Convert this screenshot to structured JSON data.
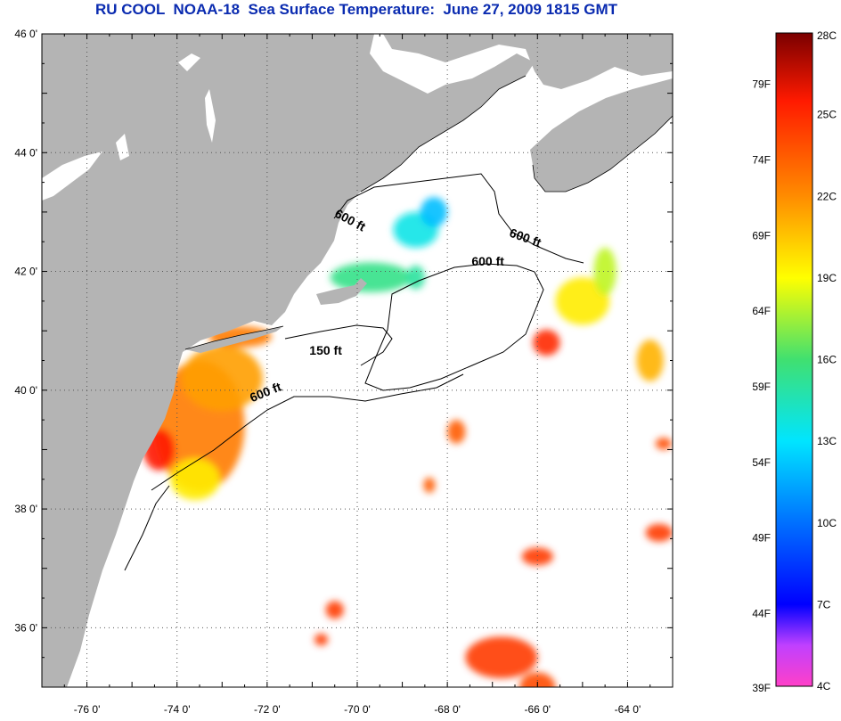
{
  "title": "RU COOL  NOAA-18  Sea Surface Temperature:  June 27, 2009 1815 GMT",
  "map": {
    "lon_range": [
      -77,
      -63
    ],
    "lat_range": [
      35,
      46
    ],
    "lon_ticks": [
      {
        "value": -76,
        "label": "-76 0'"
      },
      {
        "value": -74,
        "label": "-74 0'"
      },
      {
        "value": -72,
        "label": "-72 0'"
      },
      {
        "value": -70,
        "label": "-70 0'"
      },
      {
        "value": -68,
        "label": "-68 0'"
      },
      {
        "value": -66,
        "label": "-66 0'"
      },
      {
        "value": -64,
        "label": "-64 0'"
      }
    ],
    "lat_ticks": [
      {
        "value": 46,
        "label": "46 0'"
      },
      {
        "value": 44,
        "label": "44 0'"
      },
      {
        "value": 42,
        "label": "42 0'"
      },
      {
        "value": 40,
        "label": "40 0'"
      },
      {
        "value": 38,
        "label": "38 0'"
      },
      {
        "value": 36,
        "label": "36 0'"
      }
    ],
    "land_color": "#b4b4b4",
    "gridlines": "dotted",
    "contour_labels": [
      {
        "text": "600 ft",
        "lon": -70.2,
        "lat": 42.8,
        "rotate": 28
      },
      {
        "text": "600 ft",
        "lon": -66.3,
        "lat": 42.5,
        "rotate": 20
      },
      {
        "text": "600 ft",
        "lon": -67.1,
        "lat": 42.1,
        "rotate": 0
      },
      {
        "text": "150 ft",
        "lon": -70.7,
        "lat": 40.6,
        "rotate": 0
      },
      {
        "text": "600 ft",
        "lon": -72.0,
        "lat": 39.9,
        "rotate": -22
      }
    ]
  },
  "colorbar": {
    "celsius": [
      {
        "value": 28,
        "label": "28C"
      },
      {
        "value": 25,
        "label": "25C"
      },
      {
        "value": 22,
        "label": "22C"
      },
      {
        "value": 19,
        "label": "19C"
      },
      {
        "value": 16,
        "label": "16C"
      },
      {
        "value": 13,
        "label": "13C"
      },
      {
        "value": 10,
        "label": "10C"
      },
      {
        "value": 7,
        "label": "7C"
      },
      {
        "value": 4,
        "label": "4C"
      }
    ],
    "fahrenheit": [
      {
        "value": 79,
        "label": "79F"
      },
      {
        "value": 74,
        "label": "74F"
      },
      {
        "value": 69,
        "label": "69F"
      },
      {
        "value": 64,
        "label": "64F"
      },
      {
        "value": 59,
        "label": "59F"
      },
      {
        "value": 54,
        "label": "54F"
      },
      {
        "value": 49,
        "label": "49F"
      },
      {
        "value": 44,
        "label": "44F"
      },
      {
        "value": 39,
        "label": "39F"
      }
    ],
    "range_c": [
      4,
      28
    ],
    "stops": [
      {
        "c": 28,
        "color": "#7a0000"
      },
      {
        "c": 25.5,
        "color": "#ff1a00"
      },
      {
        "c": 22,
        "color": "#ff8c00"
      },
      {
        "c": 19,
        "color": "#ffff00"
      },
      {
        "c": 16,
        "color": "#40e070"
      },
      {
        "c": 13,
        "color": "#00e5ff"
      },
      {
        "c": 10,
        "color": "#0070ff"
      },
      {
        "c": 7,
        "color": "#0000ff"
      },
      {
        "c": 5.5,
        "color": "#c040ff"
      },
      {
        "c": 4,
        "color": "#ff40c8"
      }
    ]
  },
  "sst_patches": [
    {
      "lon": -73.5,
      "lat": 39.4,
      "rx": 1.0,
      "ry": 1.1,
      "c": 22.5
    },
    {
      "lon": -74.4,
      "lat": 39.0,
      "rx": 0.35,
      "ry": 0.35,
      "c": 25.5
    },
    {
      "lon": -73.0,
      "lat": 40.2,
      "rx": 0.9,
      "ry": 0.55,
      "c": 21.5
    },
    {
      "lon": -73.6,
      "lat": 38.5,
      "rx": 0.55,
      "ry": 0.35,
      "c": 19.5
    },
    {
      "lon": -72.6,
      "lat": 40.9,
      "rx": 0.7,
      "ry": 0.18,
      "c": 22.5
    },
    {
      "lon": -69.7,
      "lat": 41.9,
      "rx": 0.9,
      "ry": 0.25,
      "c": 15.5
    },
    {
      "lon": -68.7,
      "lat": 42.7,
      "rx": 0.5,
      "ry": 0.3,
      "c": 13.5
    },
    {
      "lon": -68.3,
      "lat": 43.0,
      "rx": 0.3,
      "ry": 0.25,
      "c": 12.0
    },
    {
      "lon": -68.7,
      "lat": 41.9,
      "rx": 0.2,
      "ry": 0.2,
      "c": 15.0
    },
    {
      "lon": -65.0,
      "lat": 41.5,
      "rx": 0.6,
      "ry": 0.4,
      "c": 19.5
    },
    {
      "lon": -64.5,
      "lat": 42.0,
      "rx": 0.25,
      "ry": 0.4,
      "c": 18.0
    },
    {
      "lon": -65.8,
      "lat": 40.8,
      "rx": 0.3,
      "ry": 0.22,
      "c": 25.0
    },
    {
      "lon": -63.5,
      "lat": 40.5,
      "rx": 0.3,
      "ry": 0.35,
      "c": 21.0
    },
    {
      "lon": -67.8,
      "lat": 39.3,
      "rx": 0.2,
      "ry": 0.2,
      "c": 23.5
    },
    {
      "lon": -68.4,
      "lat": 38.4,
      "rx": 0.13,
      "ry": 0.13,
      "c": 23.5
    },
    {
      "lon": -66.0,
      "lat": 37.2,
      "rx": 0.35,
      "ry": 0.15,
      "c": 24.5
    },
    {
      "lon": -63.3,
      "lat": 37.6,
      "rx": 0.3,
      "ry": 0.15,
      "c": 24.5
    },
    {
      "lon": -66.8,
      "lat": 35.5,
      "rx": 0.8,
      "ry": 0.35,
      "c": 24.5
    },
    {
      "lon": -70.5,
      "lat": 36.3,
      "rx": 0.2,
      "ry": 0.15,
      "c": 24.5
    },
    {
      "lon": -70.8,
      "lat": 35.8,
      "rx": 0.15,
      "ry": 0.1,
      "c": 24.5
    },
    {
      "lon": -66.0,
      "lat": 35.0,
      "rx": 0.4,
      "ry": 0.25,
      "c": 24.0
    },
    {
      "lon": -63.2,
      "lat": 39.1,
      "rx": 0.18,
      "ry": 0.1,
      "c": 24.0
    }
  ]
}
